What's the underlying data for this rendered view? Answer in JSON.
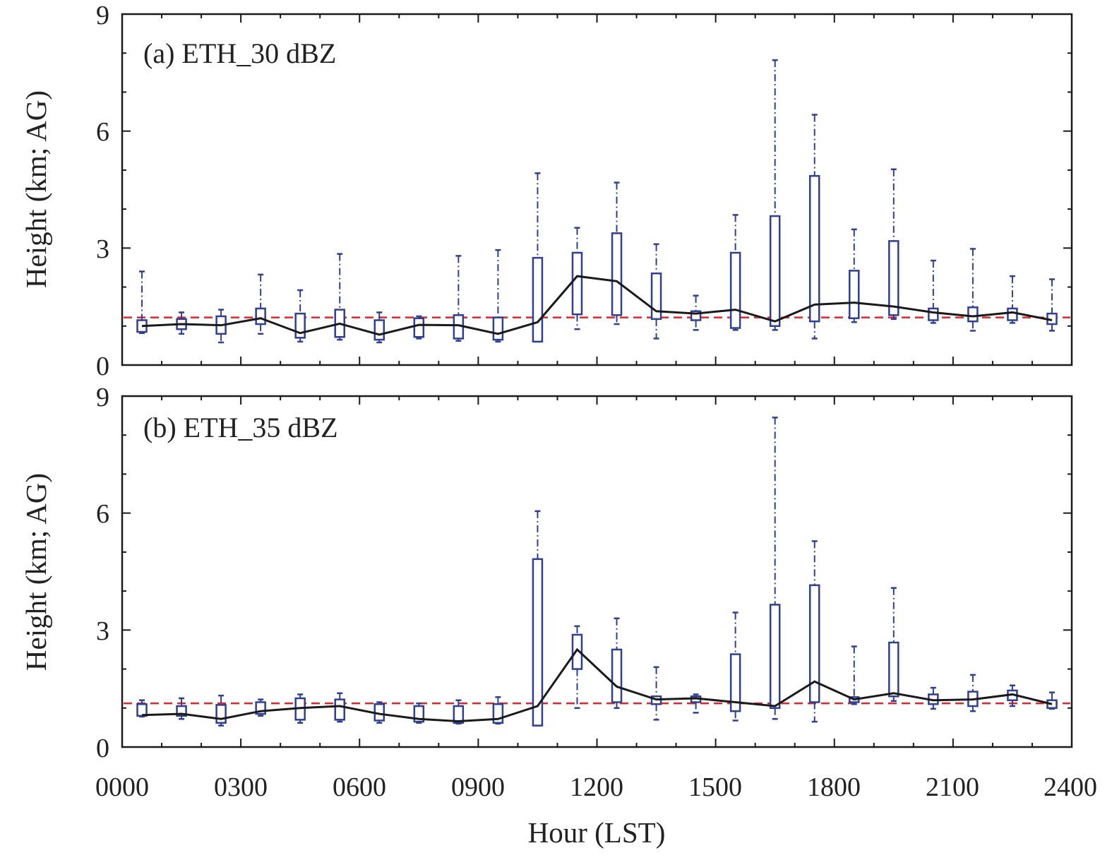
{
  "chart_data": {
    "type": "boxplot",
    "xlabel": "Hour (LST)",
    "ylabel": "Height (km; AG)",
    "xlim": [
      0,
      24
    ],
    "x_tick_labels": [
      "0000",
      "0300",
      "0600",
      "0900",
      "1200",
      "1500",
      "1800",
      "2100",
      "2400"
    ],
    "x_tick_positions": [
      0,
      3,
      6,
      9,
      12,
      15,
      18,
      21,
      24
    ],
    "hours": [
      0.5,
      1.5,
      2.5,
      3.5,
      4.5,
      5.5,
      6.5,
      7.5,
      8.5,
      9.5,
      10.5,
      11.5,
      12.5,
      13.5,
      14.5,
      15.5,
      16.5,
      17.5,
      18.5,
      19.5,
      20.5,
      21.5,
      22.5,
      23.5
    ],
    "colors": {
      "box": "#2e3f94",
      "median": "#1a1a1a",
      "reference": "#e0262b",
      "axis": "#1a1a1a"
    },
    "panels": [
      {
        "title": "(a) ETH_30 dBZ",
        "ylim": [
          0,
          9
        ],
        "y_ticks": [
          0,
          3,
          6,
          9
        ],
        "reference_line": 1.22,
        "median": [
          1.0,
          1.05,
          1.02,
          1.2,
          0.82,
          1.06,
          0.78,
          1.03,
          1.02,
          0.8,
          1.1,
          2.28,
          2.15,
          1.38,
          1.32,
          1.42,
          1.12,
          1.55,
          1.6,
          1.5,
          1.35,
          1.25,
          1.35,
          1.15
        ],
        "q1": [
          0.85,
          0.92,
          0.8,
          1.05,
          0.7,
          0.72,
          0.65,
          0.72,
          0.68,
          0.65,
          0.6,
          1.3,
          1.28,
          1.18,
          1.15,
          0.95,
          1.0,
          1.12,
          1.2,
          1.28,
          1.15,
          1.12,
          1.15,
          1.05
        ],
        "q3": [
          1.15,
          1.18,
          1.25,
          1.45,
          1.32,
          1.42,
          1.15,
          1.2,
          1.28,
          1.22,
          2.75,
          2.88,
          3.38,
          2.35,
          1.38,
          2.88,
          3.82,
          4.85,
          2.42,
          3.18,
          1.45,
          1.48,
          1.45,
          1.32
        ],
        "min": [
          0.82,
          0.8,
          0.58,
          0.8,
          0.6,
          0.65,
          0.58,
          0.68,
          0.62,
          0.6,
          0.6,
          0.92,
          1.05,
          0.68,
          0.9,
          0.9,
          0.9,
          0.68,
          1.1,
          1.18,
          1.08,
          0.88,
          1.08,
          0.88
        ],
        "max": [
          2.4,
          1.35,
          1.42,
          2.32,
          1.92,
          2.85,
          1.35,
          1.25,
          2.8,
          2.95,
          4.92,
          3.52,
          4.68,
          3.1,
          1.78,
          3.85,
          7.82,
          6.42,
          3.48,
          5.02,
          2.68,
          2.98,
          2.28,
          2.2
        ]
      },
      {
        "title": "(b) ETH_35 dBZ",
        "ylim": [
          0,
          9
        ],
        "y_ticks": [
          0,
          3,
          6,
          9
        ],
        "reference_line": 1.12,
        "median": [
          0.82,
          0.85,
          0.72,
          0.92,
          1.0,
          1.05,
          0.85,
          0.72,
          0.66,
          0.72,
          1.05,
          2.5,
          1.55,
          1.22,
          1.25,
          1.15,
          1.05,
          1.68,
          1.22,
          1.38,
          1.2,
          1.22,
          1.35,
          1.1
        ],
        "q1": [
          0.8,
          0.8,
          0.62,
          0.85,
          0.7,
          0.7,
          0.68,
          0.65,
          0.62,
          0.62,
          0.55,
          2.0,
          1.15,
          1.1,
          1.15,
          0.92,
          1.0,
          1.15,
          1.15,
          1.3,
          1.1,
          1.05,
          1.2,
          1.0
        ],
        "q3": [
          1.1,
          1.05,
          1.08,
          1.15,
          1.25,
          1.22,
          1.1,
          1.05,
          1.05,
          1.1,
          4.82,
          2.88,
          2.5,
          1.3,
          1.3,
          2.38,
          3.65,
          4.15,
          1.28,
          2.68,
          1.35,
          1.42,
          1.45,
          1.2
        ],
        "min": [
          0.78,
          0.72,
          0.55,
          0.8,
          0.62,
          0.65,
          0.62,
          0.62,
          0.6,
          0.6,
          0.55,
          1.0,
          1.0,
          0.7,
          0.88,
          0.68,
          0.72,
          0.65,
          1.1,
          1.18,
          0.98,
          0.92,
          1.05,
          0.98
        ],
        "max": [
          1.2,
          1.25,
          1.32,
          1.22,
          1.35,
          1.38,
          1.15,
          1.12,
          1.2,
          1.28,
          6.05,
          3.1,
          3.3,
          2.05,
          1.35,
          3.45,
          8.45,
          5.28,
          2.58,
          4.08,
          1.52,
          1.85,
          1.58,
          1.4
        ]
      }
    ]
  }
}
